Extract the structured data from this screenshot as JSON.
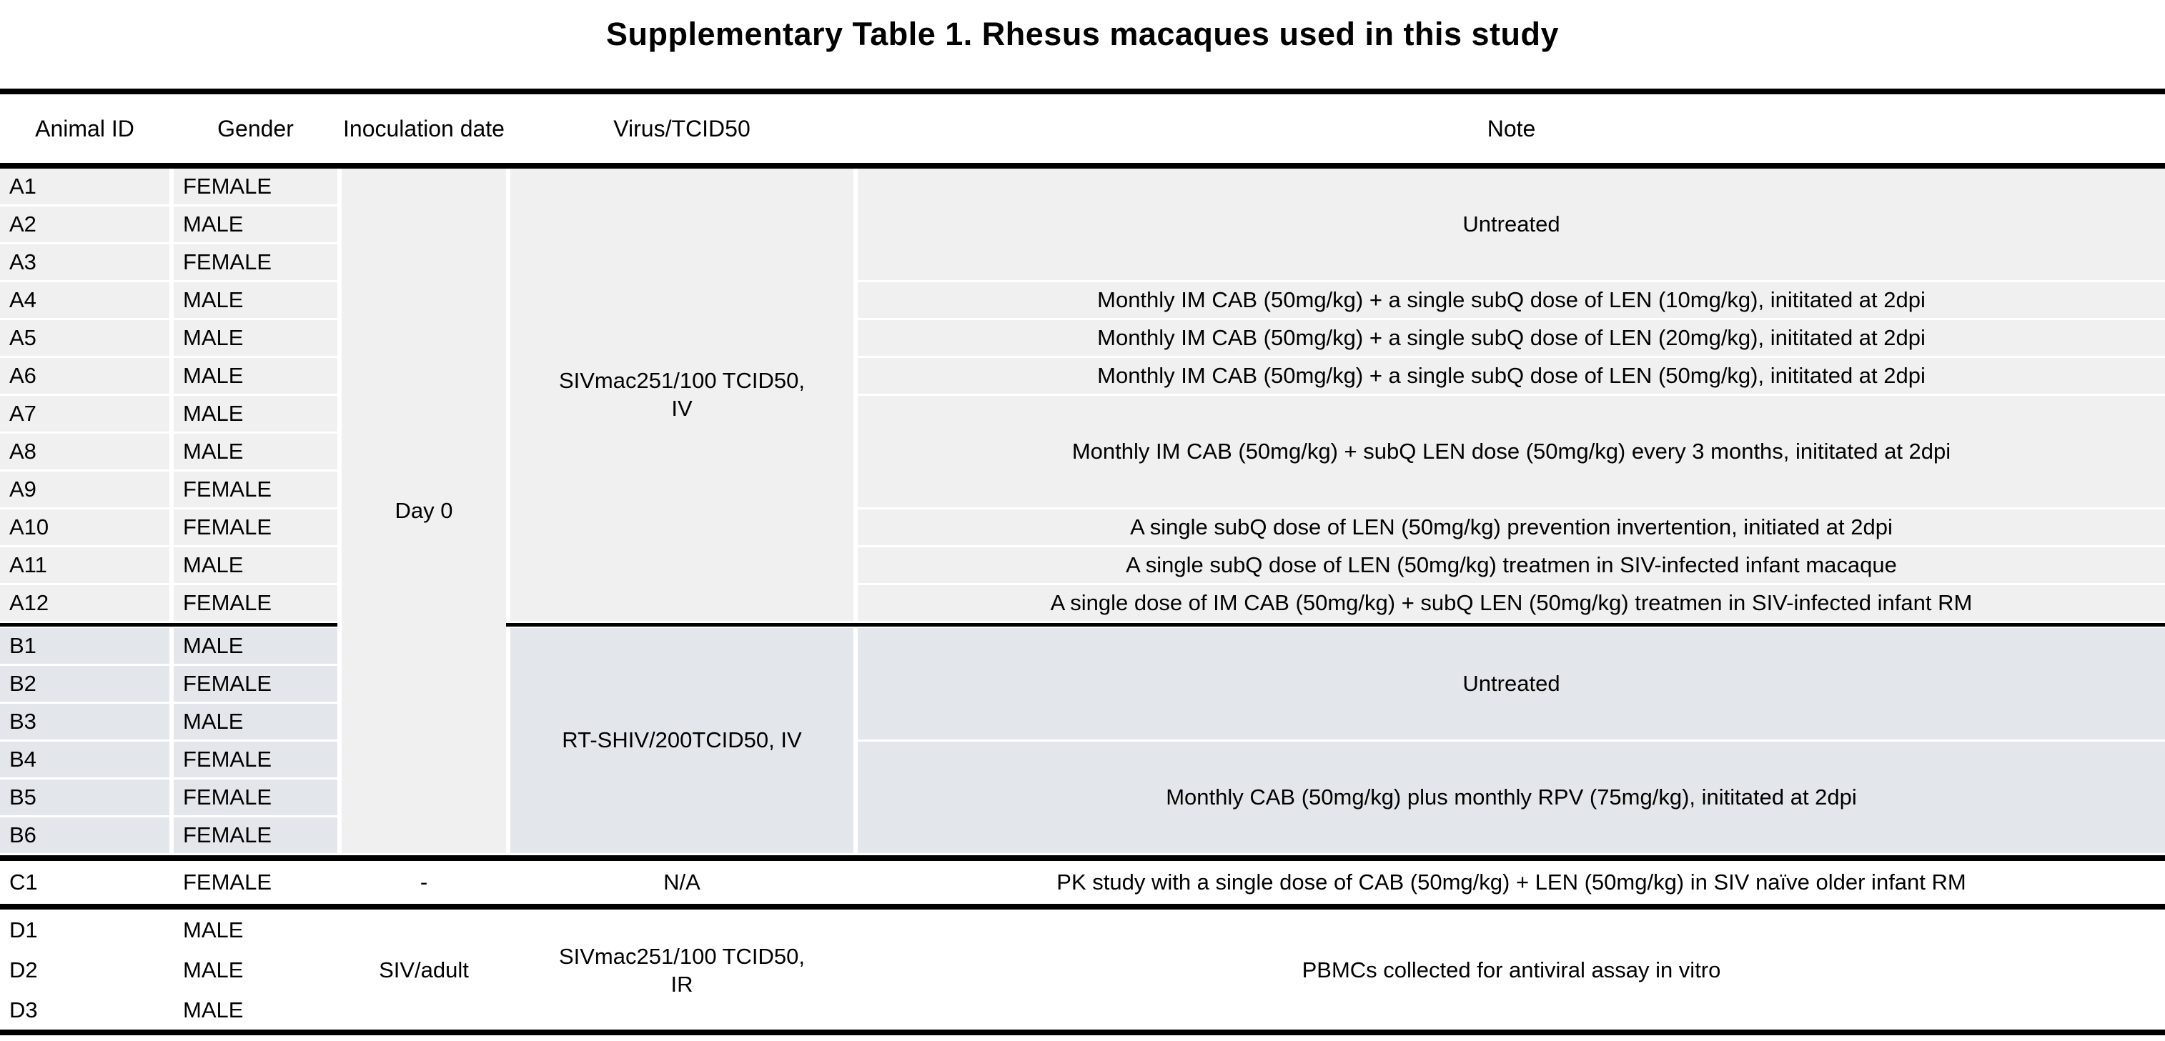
{
  "title": "Supplementary Table 1. Rhesus macaques used in this study",
  "header": {
    "animal_id": "Animal ID",
    "gender": "Gender",
    "inoculation_date": "Inoculation date",
    "virus": "Virus/TCID50",
    "note": "Note"
  },
  "group_a": {
    "rows": [
      {
        "id": "A1",
        "gender": "FEMALE"
      },
      {
        "id": "A2",
        "gender": "MALE"
      },
      {
        "id": "A3",
        "gender": "FEMALE"
      },
      {
        "id": "A4",
        "gender": "MALE"
      },
      {
        "id": "A5",
        "gender": "MALE"
      },
      {
        "id": "A6",
        "gender": "MALE"
      },
      {
        "id": "A7",
        "gender": "MALE"
      },
      {
        "id": "A8",
        "gender": "MALE"
      },
      {
        "id": "A9",
        "gender": "FEMALE"
      },
      {
        "id": "A10",
        "gender": "FEMALE"
      },
      {
        "id": "A11",
        "gender": "MALE"
      },
      {
        "id": "A12",
        "gender": "FEMALE"
      }
    ],
    "inoculation_date": "Day 0",
    "virus": "SIVmac251/100 TCID50,\nIV",
    "notes": {
      "a1_a3": "Untreated",
      "a4": "Monthly IM CAB (50mg/kg) + a single subQ dose of LEN (10mg/kg), inititated at 2dpi",
      "a5": "Monthly IM CAB (50mg/kg) + a single subQ dose of LEN (20mg/kg), inititated at 2dpi",
      "a6": "Monthly IM CAB (50mg/kg) + a single subQ dose of LEN (50mg/kg), inititated at 2dpi",
      "a7_a9": "Monthly IM CAB (50mg/kg) + subQ LEN dose (50mg/kg) every 3 months, inititated at 2dpi",
      "a10": "A single subQ dose of LEN (50mg/kg) prevention invertention, initiated at 2dpi",
      "a11": "A single subQ dose of LEN (50mg/kg) treatmen in SIV-infected infant macaque",
      "a12": "A single dose of IM CAB (50mg/kg) + subQ LEN (50mg/kg) treatmen in SIV-infected infant RM"
    }
  },
  "group_b": {
    "rows": [
      {
        "id": "B1",
        "gender": "MALE"
      },
      {
        "id": "B2",
        "gender": "FEMALE"
      },
      {
        "id": "B3",
        "gender": "MALE"
      },
      {
        "id": "B4",
        "gender": "FEMALE"
      },
      {
        "id": "B5",
        "gender": "FEMALE"
      },
      {
        "id": "B6",
        "gender": "FEMALE"
      }
    ],
    "virus": "RT-SHIV/200TCID50, IV",
    "notes": {
      "b1_b3": "Untreated",
      "b4_b6": "Monthly CAB (50mg/kg) plus monthly RPV (75mg/kg), inititated at 2dpi"
    }
  },
  "group_c": {
    "rows": [
      {
        "id": "C1",
        "gender": "FEMALE"
      }
    ],
    "inoculation_date": "-",
    "virus": "N/A",
    "note": "PK study with a single dose of CAB (50mg/kg) + LEN (50mg/kg) in SIV naïve older infant RM"
  },
  "group_d": {
    "rows": [
      {
        "id": "D1",
        "gender": "MALE"
      },
      {
        "id": "D2",
        "gender": "MALE"
      },
      {
        "id": "D3",
        "gender": "MALE"
      }
    ],
    "inoculation_date": "SIV/adult",
    "virus": "SIVmac251/100 TCID50,\nIR",
    "note": "PBMCs collected for antiviral assay in vitro"
  },
  "colors": {
    "fill_a": "#f0f0f0",
    "fill_b": "#e3e7eb",
    "rule": "#000000"
  }
}
